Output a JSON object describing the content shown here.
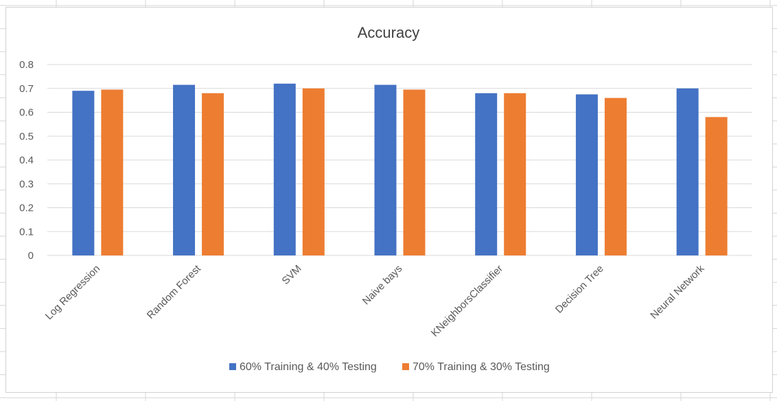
{
  "sheet": {
    "grid_color": "#d6d6d6"
  },
  "chart_data": {
    "type": "bar",
    "title": "Accuracy",
    "xlabel": "",
    "ylabel": "",
    "categories": [
      "Log Regression",
      "Random Forest",
      "SVM",
      "Naive bays",
      "KNeighborsClassifier",
      "Decision Tree",
      "Neural Network"
    ],
    "series": [
      {
        "name": "60% Training & 40% Testing",
        "color": "#4472C4",
        "values": [
          0.69,
          0.715,
          0.72,
          0.715,
          0.68,
          0.675,
          0.7
        ]
      },
      {
        "name": "70% Training & 30% Testing",
        "color": "#ED7D31",
        "values": [
          0.695,
          0.68,
          0.7,
          0.695,
          0.68,
          0.66,
          0.58
        ]
      }
    ],
    "ylim": [
      0,
      0.8
    ],
    "yticks": [
      "0",
      "0.1",
      "0.2",
      "0.3",
      "0.4",
      "0.5",
      "0.6",
      "0.7",
      "0.8"
    ],
    "grid": true,
    "legend_position": "bottom",
    "colors": {
      "grid": "#d9d9d9",
      "text": "#595959",
      "title": "#404040"
    }
  }
}
